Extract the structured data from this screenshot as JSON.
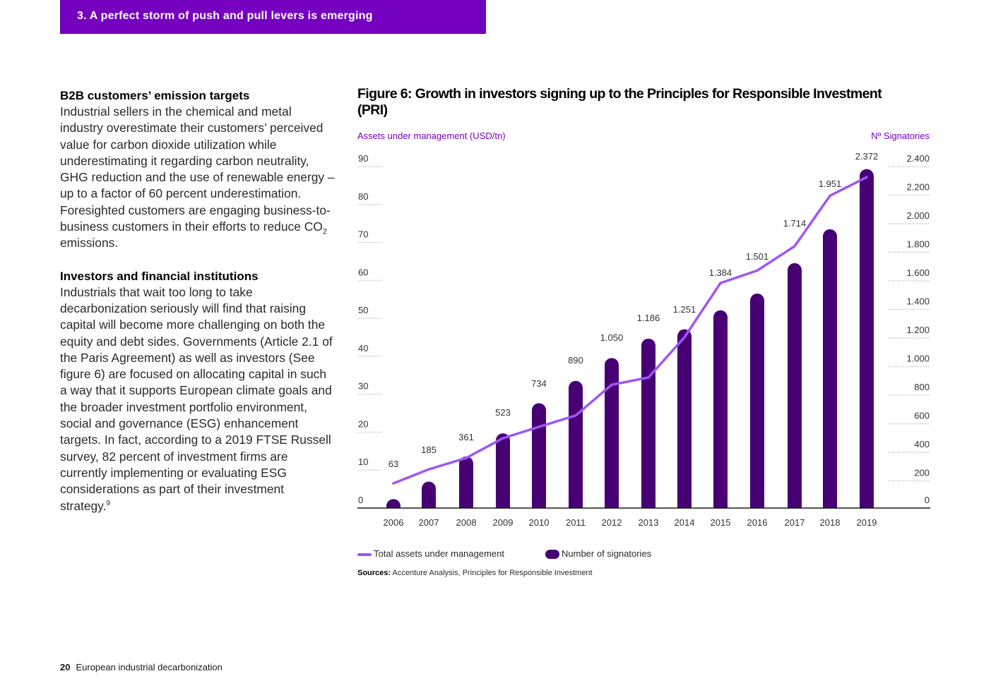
{
  "header": {
    "section_title": "3. A perfect storm of push and pull levers is emerging"
  },
  "left_column": {
    "b2b": {
      "heading": "B2B customers’ emission targets",
      "body_before_sub": "Industrial sellers in the chemical and metal industry overestimate their customers’ perceived value for carbon dioxide utilization while underestimating it regarding carbon neutrality, GHG reduction and the use of renewable energy – up to a factor of 60 percent underestimation. Foresighted customers are engaging business-to-business customers in their efforts to reduce CO",
      "subscript": "2",
      "body_after_sub": " emissions."
    },
    "investors": {
      "heading": "Investors and financial institutions",
      "body": "Industrials that wait too long to take decarbonization seriously will find that raising capital will become more challenging on both the equity and debt sides. Governments (Article 2.1 of the Paris Agreement) as well as investors (See figure 6) are focused on allocating capital in such a way that it supports European climate goals and the broader investment portfolio environment, social and governance (ESG) enhancement targets. In fact, according to a 2019 FTSE Russell survey, 82 percent of investment firms are currently implementing or evaluating ESG considerations as part of their investment strategy.",
      "footnote": "9"
    }
  },
  "figure": {
    "legend": {
      "line_label": "Total assets under management",
      "bar_label": "Number of signatories"
    },
    "sources_label": "Sources:",
    "sources_text": " Accenture Analysis, Principles for Responsible Investment"
  },
  "colors": {
    "band": "#7500c0",
    "bars": "#460073",
    "line": "#a055f5",
    "axis_title": "#7500c0"
  },
  "footer": {
    "page_number": "20",
    "doc_title": "European industrial decarbonization"
  },
  "chart_data": {
    "type": "bar+line",
    "title": "Figure 6: Growth in investors signing up to the Principles for Responsible Investment (PRI)",
    "categories": [
      "2006",
      "2007",
      "2008",
      "2009",
      "2010",
      "2011",
      "2012",
      "2013",
      "2014",
      "2015",
      "2016",
      "2017",
      "2018",
      "2019"
    ],
    "series": [
      {
        "name": "Number of signatories",
        "type": "bar",
        "axis": "right",
        "values": [
          63,
          185,
          361,
          523,
          734,
          890,
          1050,
          1186,
          1251,
          1384,
          1501,
          1714,
          1951,
          2372
        ],
        "labels": [
          "63",
          "185",
          "361",
          "523",
          "734",
          "890",
          "1.050",
          "1.186",
          "1.251",
          "1.384",
          "1.501",
          "1.714",
          "1.951",
          "2.372"
        ]
      },
      {
        "name": "Total assets under management",
        "type": "line",
        "axis": "left",
        "values": [
          6.5,
          10.2,
          13.2,
          18.4,
          21.4,
          24.4,
          32.5,
          34.4,
          45.0,
          59.3,
          62.6,
          69.0,
          82.3,
          87.2
        ]
      }
    ],
    "left_axis": {
      "label": "Assets under management (USD/tn)",
      "range": [
        0,
        90
      ],
      "ticks": [
        "0",
        "10",
        "20",
        "30",
        "40",
        "50",
        "60",
        "70",
        "80",
        "90"
      ]
    },
    "right_axis": {
      "label": "Nº Signatories",
      "range": [
        0,
        2400
      ],
      "ticks": [
        "0",
        "200",
        "400",
        "600",
        "800",
        "1.000",
        "1.200",
        "1.400",
        "1.600",
        "1.800",
        "2.000",
        "2.200",
        "2.400"
      ]
    },
    "grid": "dotted tick stubs at both axes",
    "legend_position": "bottom-left"
  }
}
